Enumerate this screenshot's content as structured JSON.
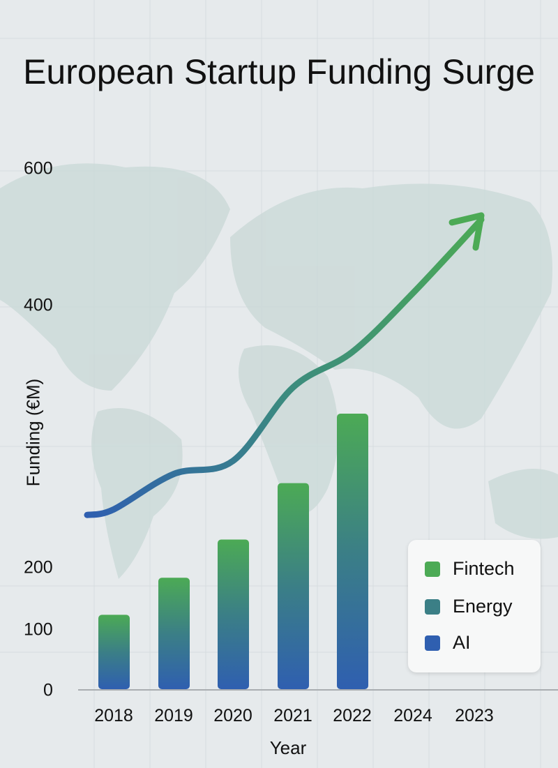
{
  "chart_data": {
    "type": "bar",
    "title": "European Startup Funding Surge",
    "xlabel": "Year",
    "ylabel": "Funding (€M)",
    "categories": [
      "2018",
      "2019",
      "2020",
      "2021",
      "2022",
      "2024",
      "2023"
    ],
    "yticks": [
      "600",
      "400",
      "200",
      "100",
      "0"
    ],
    "ylim": [
      0,
      600
    ],
    "grid": true,
    "legend_position": "bottom-right",
    "legend": [
      {
        "name": "Fintech",
        "color": "#4caa55"
      },
      {
        "name": "Energy",
        "color": "#3b7f86"
      },
      {
        "name": "AI",
        "color": "#2f5fb0"
      }
    ],
    "bars": {
      "values": [
        124,
        183,
        221,
        264,
        317,
        null,
        null
      ],
      "color_top": "#4caa55",
      "color_bottom": "#2f5fb0"
    },
    "trend_line": {
      "values": [
        244,
        271,
        281,
        337,
        364,
        417,
        524
      ],
      "arrow": true,
      "color_start": "#2f5fb0",
      "color_end": "#4caa55"
    }
  }
}
